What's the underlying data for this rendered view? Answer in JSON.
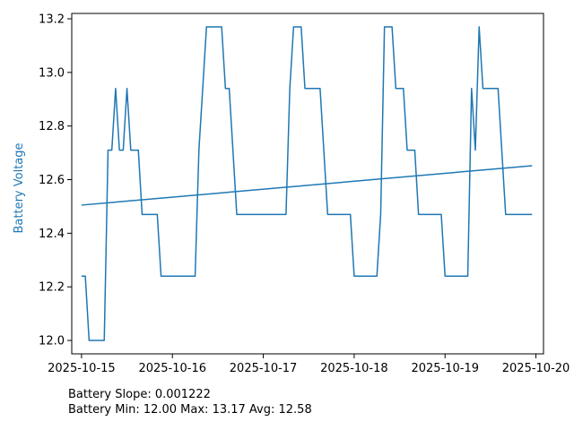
{
  "chart_data": {
    "type": "line",
    "title": "",
    "xlabel": "",
    "ylabel": "Battery Voltage",
    "xlim": [
      "2025-10-14 21:25",
      "2025-10-20 02:00"
    ],
    "ylim": [
      11.95,
      13.22
    ],
    "x_ticks": [
      "2025-10-15",
      "2025-10-16",
      "2025-10-17",
      "2025-10-18",
      "2025-10-19",
      "2025-10-20"
    ],
    "y_ticks": [
      "12.0",
      "12.2",
      "12.4",
      "12.6",
      "12.8",
      "13.0",
      "13.2"
    ],
    "grid": false,
    "legend": "none",
    "color": "#1f77b4",
    "series": [
      {
        "style": "step",
        "points": [
          [
            "2025-10-15 00:00",
            12.24
          ],
          [
            "2025-10-15 01:00",
            12.24
          ],
          [
            "2025-10-15 02:00",
            12.0
          ],
          [
            "2025-10-15 06:00",
            12.0
          ],
          [
            "2025-10-15 07:00",
            12.71
          ],
          [
            "2025-10-15 08:00",
            12.71
          ],
          [
            "2025-10-15 09:00",
            12.94
          ],
          [
            "2025-10-15 10:00",
            12.71
          ],
          [
            "2025-10-15 11:00",
            12.71
          ],
          [
            "2025-10-15 12:00",
            12.94
          ],
          [
            "2025-10-15 13:00",
            12.71
          ],
          [
            "2025-10-15 15:00",
            12.71
          ],
          [
            "2025-10-15 16:00",
            12.47
          ],
          [
            "2025-10-15 20:00",
            12.47
          ],
          [
            "2025-10-15 21:00",
            12.24
          ],
          [
            "2025-10-16 06:00",
            12.24
          ],
          [
            "2025-10-16 07:00",
            12.71
          ],
          [
            "2025-10-16 09:00",
            13.17
          ],
          [
            "2025-10-16 13:00",
            13.17
          ],
          [
            "2025-10-16 14:00",
            12.94
          ],
          [
            "2025-10-16 15:00",
            12.94
          ],
          [
            "2025-10-16 17:00",
            12.47
          ],
          [
            "2025-10-17 06:00",
            12.47
          ],
          [
            "2025-10-17 07:00",
            12.94
          ],
          [
            "2025-10-17 08:00",
            13.17
          ],
          [
            "2025-10-17 10:00",
            13.17
          ],
          [
            "2025-10-17 11:00",
            12.94
          ],
          [
            "2025-10-17 15:00",
            12.94
          ],
          [
            "2025-10-17 17:00",
            12.47
          ],
          [
            "2025-10-17 23:00",
            12.47
          ],
          [
            "2025-10-18 00:00",
            12.24
          ],
          [
            "2025-10-18 06:00",
            12.24
          ],
          [
            "2025-10-18 07:00",
            12.47
          ],
          [
            "2025-10-18 08:00",
            13.17
          ],
          [
            "2025-10-18 10:00",
            13.17
          ],
          [
            "2025-10-18 11:00",
            12.94
          ],
          [
            "2025-10-18 13:00",
            12.94
          ],
          [
            "2025-10-18 14:00",
            12.71
          ],
          [
            "2025-10-18 16:00",
            12.71
          ],
          [
            "2025-10-18 17:00",
            12.47
          ],
          [
            "2025-10-18 23:00",
            12.47
          ],
          [
            "2025-10-19 00:00",
            12.24
          ],
          [
            "2025-10-19 06:00",
            12.24
          ],
          [
            "2025-10-19 07:00",
            12.94
          ],
          [
            "2025-10-19 08:00",
            12.71
          ],
          [
            "2025-10-19 09:00",
            13.17
          ],
          [
            "2025-10-19 10:00",
            12.94
          ],
          [
            "2025-10-19 14:00",
            12.94
          ],
          [
            "2025-10-19 16:00",
            12.47
          ],
          [
            "2025-10-19 23:00",
            12.47
          ]
        ]
      },
      {
        "style": "trend",
        "points": [
          [
            "2025-10-15 00:00",
            12.505
          ],
          [
            "2025-10-19 23:00",
            12.652
          ]
        ]
      }
    ]
  },
  "notes": {
    "slope": "Battery Slope: 0.001222",
    "stats": "Battery Min: 12.00 Max: 13.17 Avg: 12.58"
  }
}
